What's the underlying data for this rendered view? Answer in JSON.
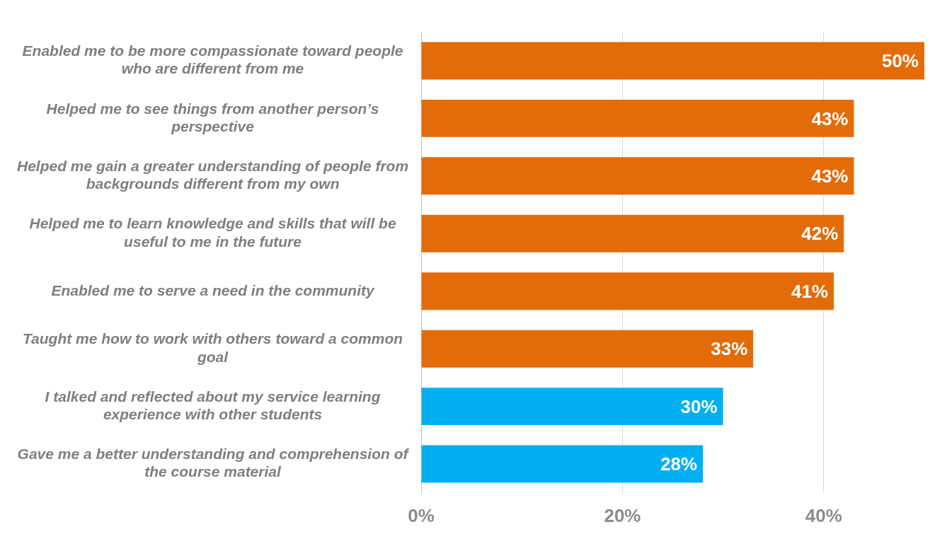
{
  "chart_data": {
    "type": "bar",
    "orientation": "horizontal",
    "categories": [
      "Enabled me to be more compassionate toward people who are different from me",
      "Helped me to see things from another person’s perspective",
      "Helped me gain a greater understanding of people from backgrounds different from my own",
      "Helped me to learn knowledge and skills that will be useful to me in the future",
      "Enabled me to serve a need in the community",
      "Taught me how to work with others toward a common goal",
      "I talked and reflected about my service learning experience with other students",
      "Gave me a better understanding and comprehension of the course material"
    ],
    "values": [
      50,
      43,
      43,
      42,
      41,
      33,
      30,
      28
    ],
    "colors": [
      "#e36c09",
      "#e36c09",
      "#e36c09",
      "#e36c09",
      "#e36c09",
      "#e36c09",
      "#00b0f0",
      "#00b0f0"
    ],
    "value_labels": [
      "50%",
      "43%",
      "43%",
      "42%",
      "41%",
      "33%",
      "30%",
      "28%"
    ],
    "xlim": [
      0,
      50
    ],
    "xticks": [
      {
        "value": 0,
        "label": "0%"
      },
      {
        "value": 20,
        "label": "20%"
      },
      {
        "value": 40,
        "label": "40%"
      }
    ],
    "grid": "x",
    "legend": false
  }
}
